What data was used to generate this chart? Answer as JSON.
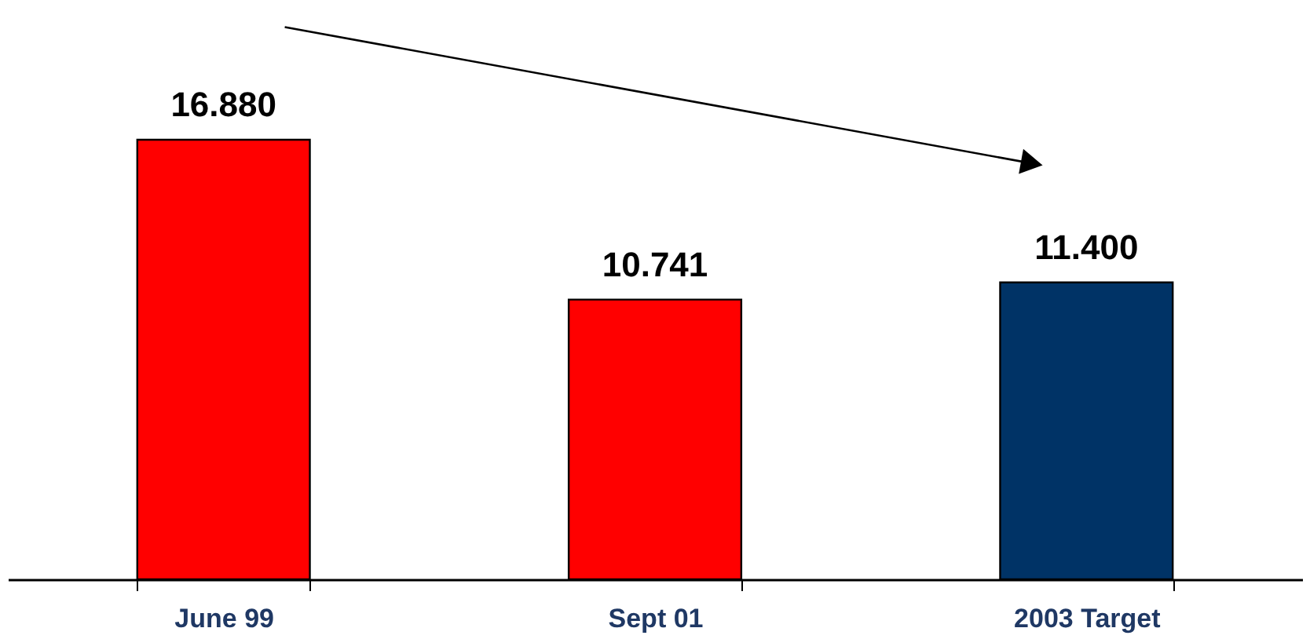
{
  "chart_data": {
    "type": "bar",
    "categories": [
      "June 99",
      "Sept 01",
      "2003 Target"
    ],
    "values": [
      16.88,
      10.741,
      11.4
    ],
    "colors": [
      "#ff0000",
      "#ff0000",
      "#003366"
    ],
    "value_labels": [
      "16.880",
      "10.741",
      "11.400"
    ],
    "grid": false,
    "tick_labels": "x"
  }
}
